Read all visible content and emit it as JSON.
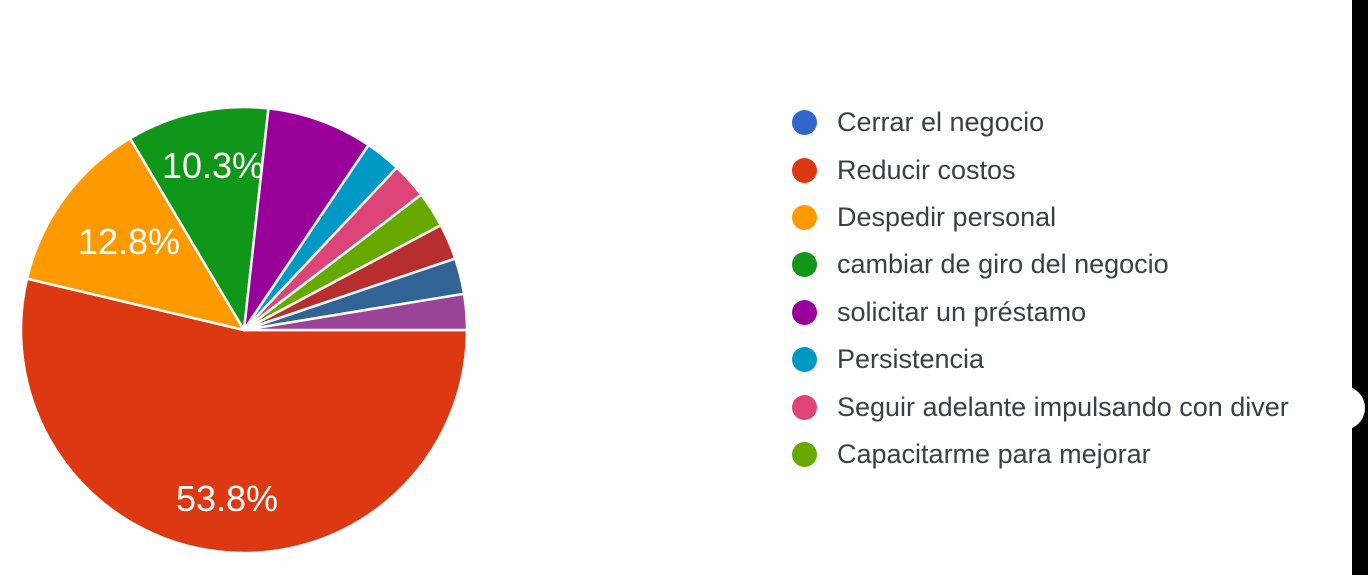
{
  "chart_data": {
    "type": "pie",
    "title": "",
    "legend_position": "right",
    "slice_border_color": "#ffffff",
    "label_text_color": "#ffffff",
    "legend_text_color": "#3c4043",
    "slices": [
      {
        "label": "Reducir costos",
        "pct": 53.8,
        "display_label": "53.8%",
        "color": "#DC3912"
      },
      {
        "label": "Despedir personal",
        "pct": 12.8,
        "display_label": "12.8%",
        "color": "#FF9900"
      },
      {
        "label": "cambiar de giro del negocio",
        "pct": 10.3,
        "display_label": "10.3%",
        "color": "#109618"
      },
      {
        "label": "solicitar un préstamo",
        "pct": 7.7,
        "display_label": "",
        "color": "#990099"
      },
      {
        "label": "Persistencia",
        "pct": 2.6,
        "display_label": "",
        "color": "#0099C6"
      },
      {
        "label": "Seguir adelante impulsando con diver",
        "pct": 2.6,
        "display_label": "",
        "color": "#DD4477"
      },
      {
        "label": "Capacitarme para mejorar",
        "pct": 2.6,
        "display_label": "",
        "color": "#66AA00"
      },
      {
        "label": "",
        "pct": 2.6,
        "display_label": "",
        "color": "#B82E2E"
      },
      {
        "label": "",
        "pct": 2.6,
        "display_label": "",
        "color": "#316395"
      },
      {
        "label": "",
        "pct": 2.6,
        "display_label": "",
        "color": "#994499"
      }
    ],
    "legend": [
      {
        "label": "Cerrar el negocio",
        "color": "#3366CC"
      },
      {
        "label": "Reducir costos",
        "color": "#DC3912"
      },
      {
        "label": "Despedir personal",
        "color": "#FF9900"
      },
      {
        "label": "cambiar de giro del negocio",
        "color": "#109618"
      },
      {
        "label": "solicitar un préstamo",
        "color": "#990099"
      },
      {
        "label": "Persistencia",
        "color": "#0099C6"
      },
      {
        "label": "Seguir adelante impulsando con diver",
        "color": "#DD4477"
      },
      {
        "label": "Capacitarme para mejorar",
        "color": "#66AA00"
      }
    ]
  },
  "decor": {
    "right_edge_bar_color": "#000000"
  }
}
